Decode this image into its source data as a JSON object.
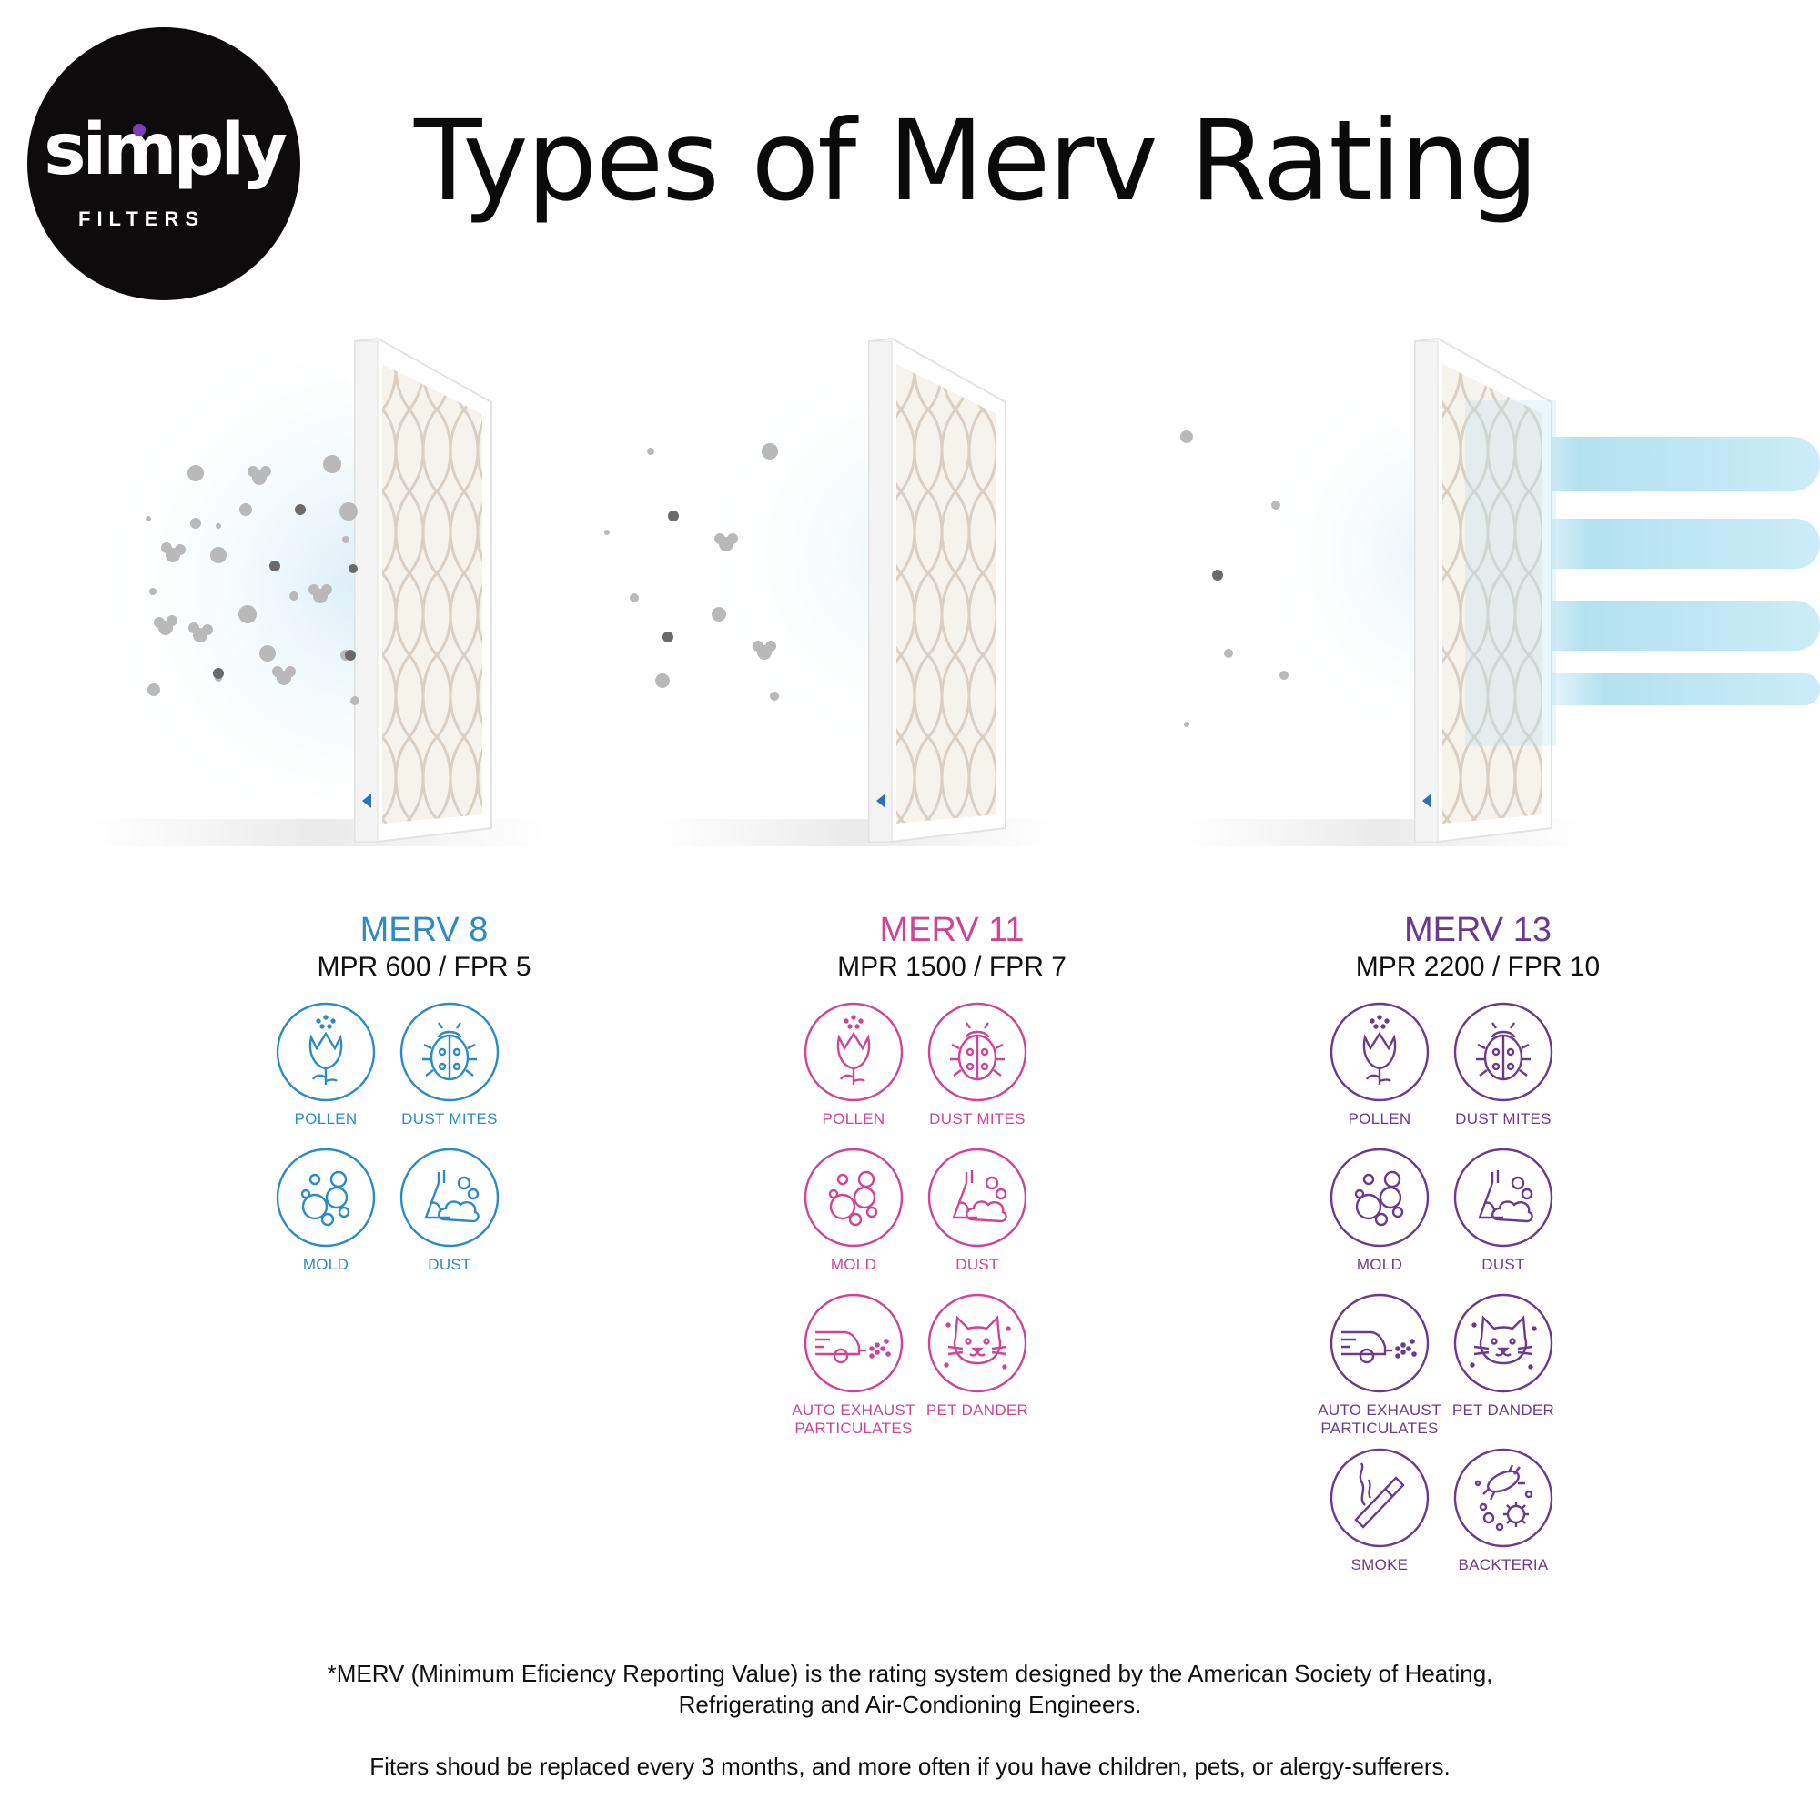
{
  "brand": {
    "word": "simply",
    "sub": "FILTERS"
  },
  "title": "Types of Merv Rating",
  "colors": {
    "merv8": "#2b8bc4",
    "merv11": "#cf4596",
    "merv13": "#6b3a8f"
  },
  "ratings": [
    {
      "name": "MERV 8",
      "sub": "MPR 600 / FPR 5",
      "items": [
        {
          "label": "POLLEN",
          "icon": "tulip-icon"
        },
        {
          "label": "DUST MITES",
          "icon": "ladybug-icon"
        },
        {
          "label": "MOLD",
          "icon": "mold-icon"
        },
        {
          "label": "DUST",
          "icon": "dust-icon"
        }
      ]
    },
    {
      "name": "MERV 11",
      "sub": "MPR 1500 / FPR 7",
      "items": [
        {
          "label": "POLLEN",
          "icon": "tulip-icon"
        },
        {
          "label": "DUST MITES",
          "icon": "ladybug-icon"
        },
        {
          "label": "MOLD",
          "icon": "mold-icon"
        },
        {
          "label": "DUST",
          "icon": "dust-icon"
        },
        {
          "label": "AUTO EXHAUST\nPARTICULATES",
          "icon": "car-exhaust-icon"
        },
        {
          "label": "PET DANDER",
          "icon": "cat-icon"
        }
      ]
    },
    {
      "name": "MERV 13",
      "sub": "MPR 2200 / FPR 10",
      "items": [
        {
          "label": "POLLEN",
          "icon": "tulip-icon"
        },
        {
          "label": "DUST MITES",
          "icon": "ladybug-icon"
        },
        {
          "label": "MOLD",
          "icon": "mold-icon"
        },
        {
          "label": "DUST",
          "icon": "dust-icon"
        },
        {
          "label": "AUTO EXHAUST\nPARTICULATES",
          "icon": "car-exhaust-icon"
        },
        {
          "label": "PET DANDER",
          "icon": "cat-icon"
        },
        {
          "label": "SMOKE",
          "icon": "cigarette-icon"
        },
        {
          "label": "BACKTERIA",
          "icon": "bacteria-icon"
        }
      ]
    }
  ],
  "footnote": {
    "line1": "*MERV (Minimum Eficiency Reporting Value) is the rating system designed by the American Society of Heating,",
    "line2": "Refrigerating and Air-Condioning Engineers.",
    "line3": "Fiters shoud be replaced every 3 months, and more often if you have children, pets, or alergy-sufferers."
  }
}
